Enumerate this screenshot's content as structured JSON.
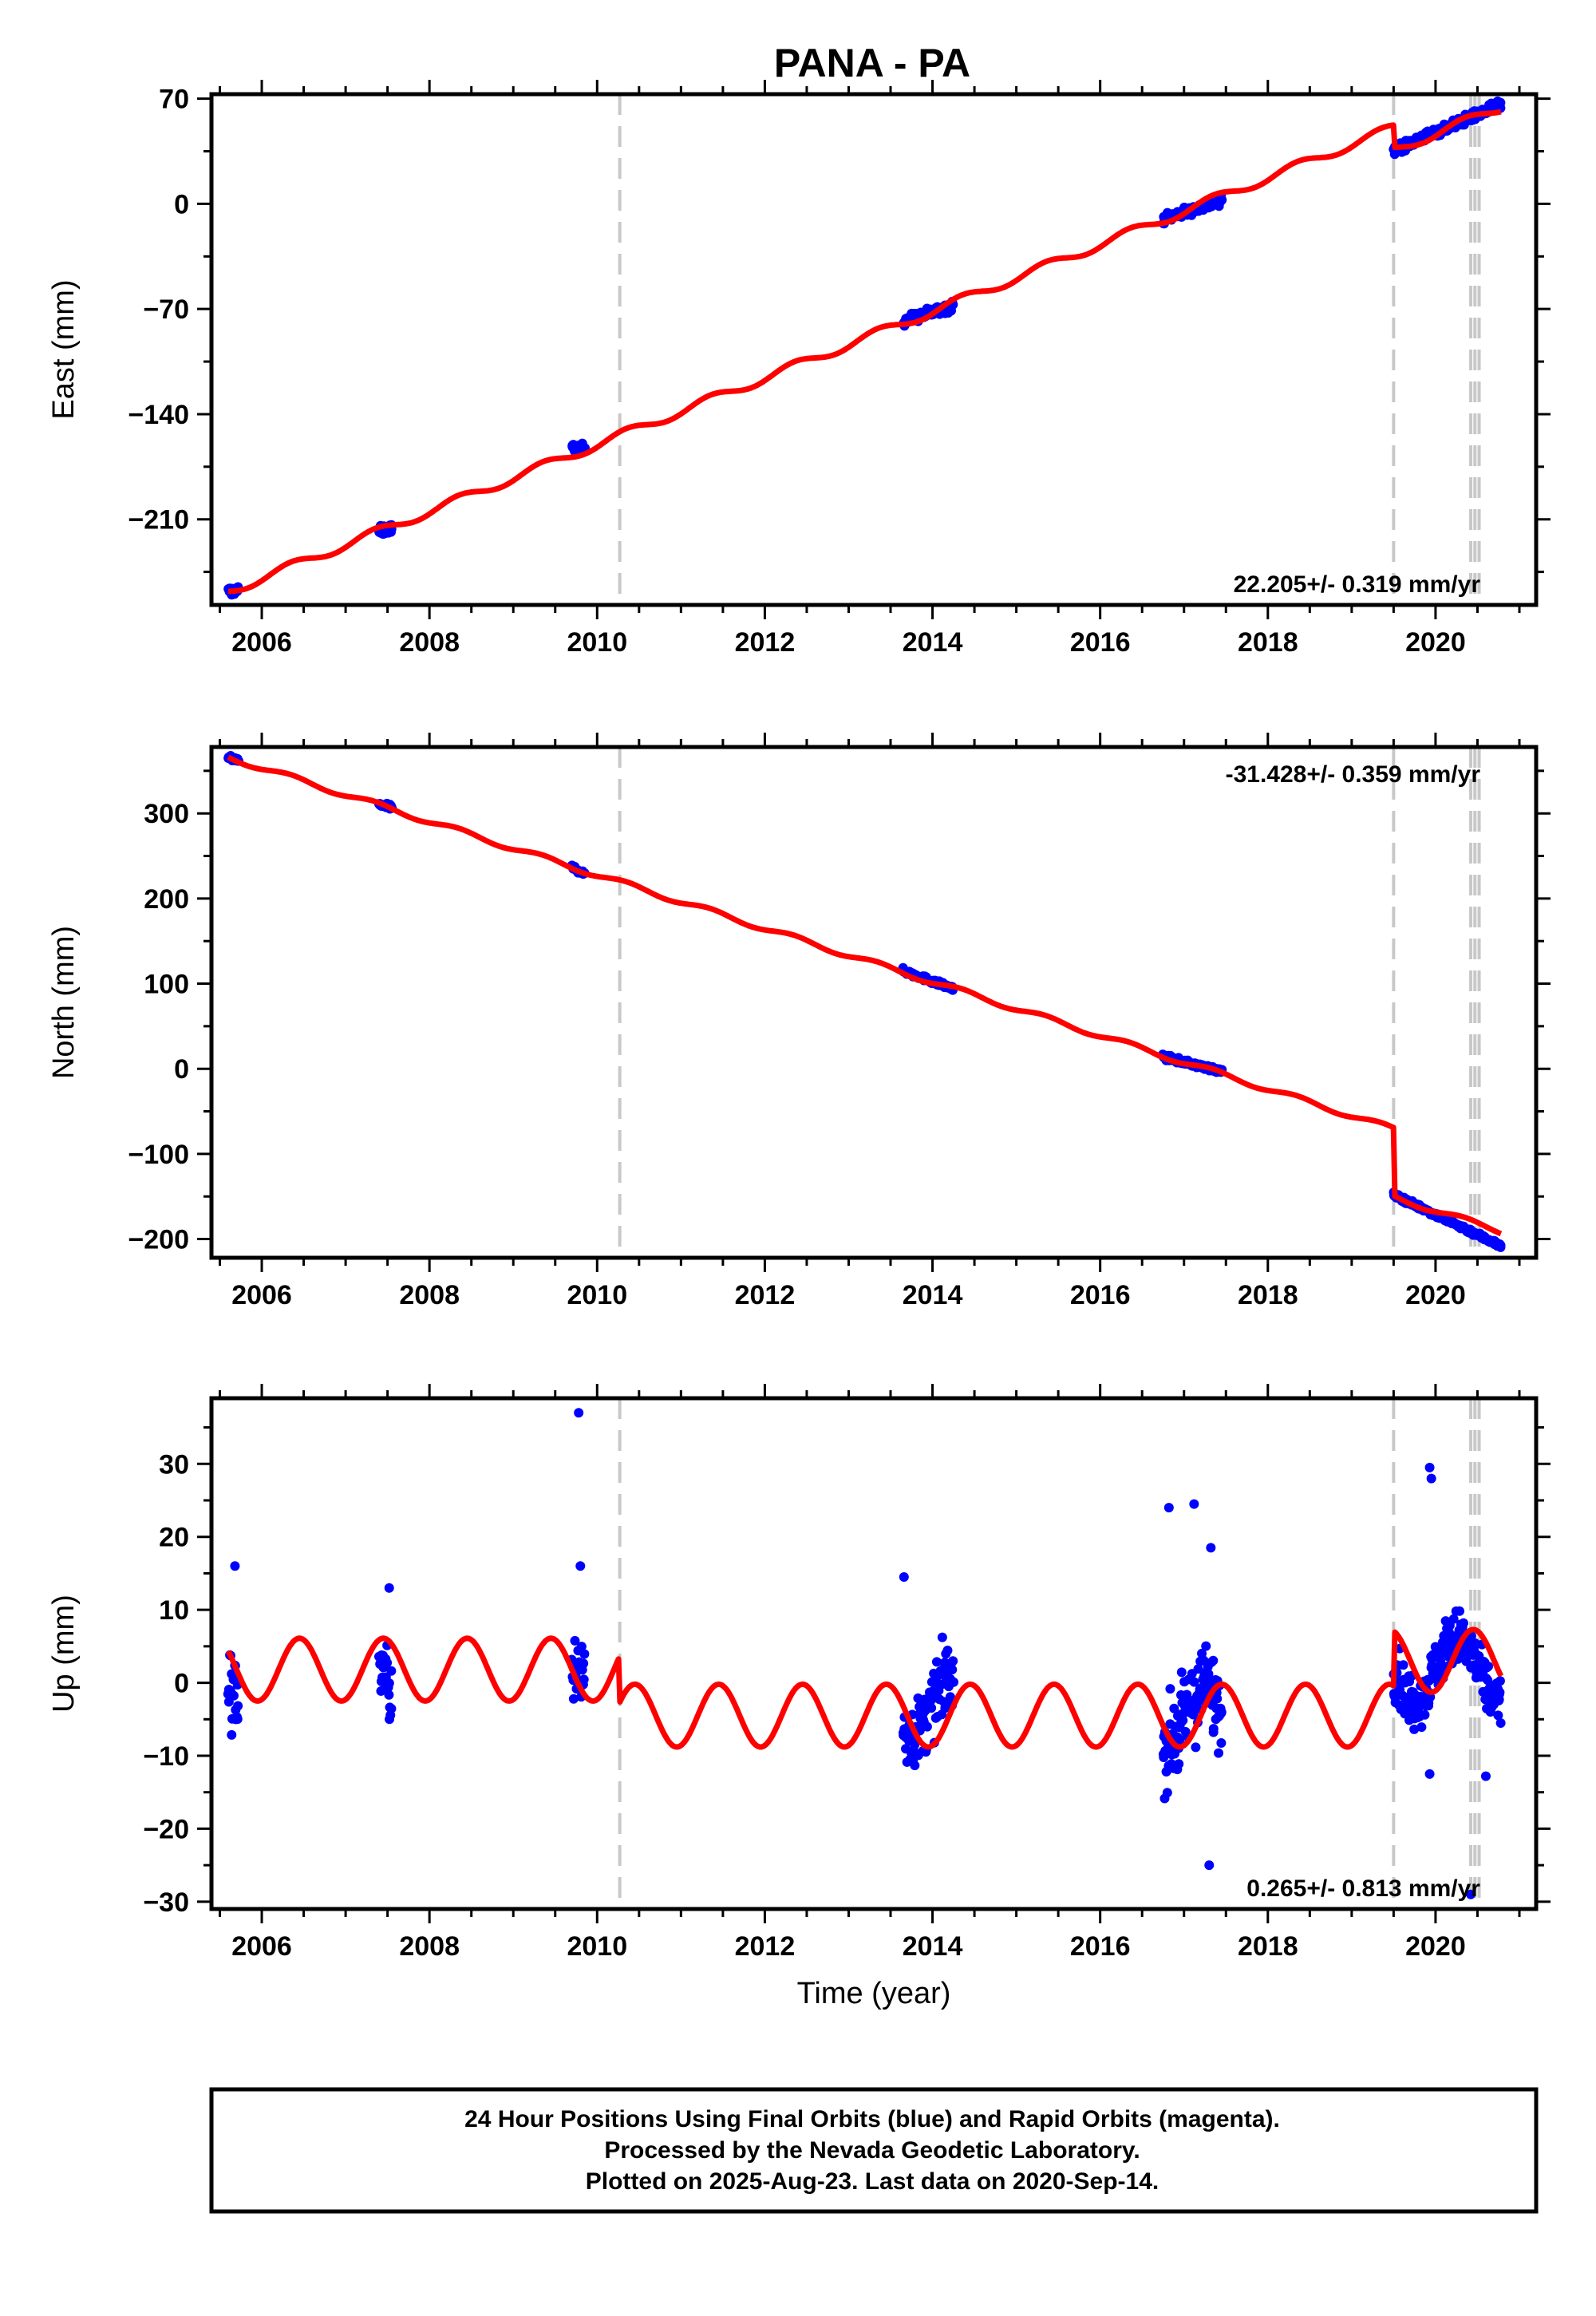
{
  "title": "PANA - PA",
  "footer": {
    "line1": "24 Hour Positions Using Final Orbits (blue) and Rapid Orbits (magenta).",
    "line2": "Processed by the Nevada Geodetic Laboratory.",
    "line3": "Plotted on 2025-Aug-23. Last data on 2020-Sep-14."
  },
  "colors": {
    "data_points": "#0000ff",
    "model_fit": "#ff0000",
    "event_lines": "#c8c8c8",
    "frame": "#000000"
  },
  "chart_data": [
    {
      "type": "scatter",
      "panel": "east",
      "xlabel": "",
      "ylabel": "East (mm)",
      "xlim": [
        2005.4,
        2021.2
      ],
      "ylim": [
        -267,
        73
      ],
      "xticks": [
        2006,
        2008,
        2010,
        2012,
        2014,
        2016,
        2018,
        2020
      ],
      "yticks": [
        -210,
        -140,
        -70,
        0,
        70
      ],
      "rate_text": "22.205+/- 0.319 mm/yr",
      "rate_placement": "bottom-right",
      "event_lines_x": [
        2010.27,
        2019.5,
        2020.42,
        2020.47,
        2020.52
      ],
      "data_segments": [
        {
          "x_start": 2005.6,
          "x_end": 2005.72,
          "y_start": -258,
          "y_end": -257
        },
        {
          "x_start": 2007.4,
          "x_end": 2007.55,
          "y_start": -218,
          "y_end": -216
        },
        {
          "x_start": 2009.7,
          "x_end": 2009.85,
          "y_start": -163,
          "y_end": -163
        },
        {
          "x_start": 2013.65,
          "x_end": 2014.25,
          "y_start": -78,
          "y_end": -68
        },
        {
          "x_start": 2016.75,
          "x_end": 2017.45,
          "y_start": -10,
          "y_end": 2
        },
        {
          "x_start": 2019.5,
          "x_end": 2020.78,
          "y_start": 36,
          "y_end": 66
        }
      ],
      "model_line": {
        "x_start": 2005.6,
        "x_end": 2020.78,
        "y_at_start": -258,
        "trend_mm_per_yr": 22.205,
        "annual_amplitude": 3,
        "offset_at_2019_5": -15
      }
    },
    {
      "type": "scatter",
      "panel": "north",
      "xlabel": "",
      "ylabel": "North (mm)",
      "xlim": [
        2005.4,
        2021.2
      ],
      "ylim": [
        -222,
        378
      ],
      "xticks": [
        2006,
        2008,
        2010,
        2012,
        2014,
        2016,
        2018,
        2020
      ],
      "yticks": [
        -200,
        -100,
        0,
        100,
        200,
        300
      ],
      "rate_text": "-31.428+/- 0.359 mm/yr",
      "rate_placement": "top-right",
      "event_lines_x": [
        2010.27,
        2019.5,
        2020.42,
        2020.47,
        2020.52
      ],
      "data_segments": [
        {
          "x_start": 2005.6,
          "x_end": 2005.72,
          "y_start": 365,
          "y_end": 362
        },
        {
          "x_start": 2007.4,
          "x_end": 2007.55,
          "y_start": 310,
          "y_end": 307
        },
        {
          "x_start": 2009.7,
          "x_end": 2009.85,
          "y_start": 237,
          "y_end": 229
        },
        {
          "x_start": 2013.65,
          "x_end": 2014.25,
          "y_start": 115,
          "y_end": 94
        },
        {
          "x_start": 2016.75,
          "x_end": 2017.45,
          "y_start": 14,
          "y_end": -3
        },
        {
          "x_start": 2019.5,
          "x_end": 2020.78,
          "y_start": -148,
          "y_end": -208
        }
      ],
      "model_line": {
        "x_start": 2005.6,
        "x_end": 2020.78,
        "y_at_start": 366,
        "trend_mm_per_yr": -31.428,
        "annual_amplitude": 3,
        "offset_at_2019_5": -80
      }
    },
    {
      "type": "scatter",
      "panel": "up",
      "xlabel": "Time (year)",
      "ylabel": "Up (mm)",
      "xlim": [
        2005.4,
        2021.2
      ],
      "ylim": [
        -31,
        39
      ],
      "xticks": [
        2006,
        2008,
        2010,
        2012,
        2014,
        2016,
        2018,
        2020
      ],
      "yticks": [
        -30,
        -20,
        -10,
        0,
        10,
        20,
        30
      ],
      "rate_text": "0.265+/- 0.813 mm/yr",
      "rate_placement": "bottom-right",
      "event_lines_x": [
        2010.27,
        2019.5,
        2020.42,
        2020.47,
        2020.52
      ],
      "data_segments": [
        {
          "x_start": 2005.6,
          "x_end": 2005.72,
          "center": 2,
          "spread": 9
        },
        {
          "x_start": 2007.4,
          "x_end": 2007.55,
          "center": 0,
          "spread": 7
        },
        {
          "x_start": 2009.7,
          "x_end": 2009.85,
          "center": 5,
          "spread": 9
        },
        {
          "x_start": 2013.65,
          "x_end": 2014.25,
          "center": -3,
          "spread": 7
        },
        {
          "x_start": 2016.75,
          "x_end": 2017.45,
          "center": -5,
          "spread": 9
        },
        {
          "x_start": 2019.5,
          "x_end": 2020.78,
          "center": 2,
          "spread": 6
        }
      ],
      "outliers": [
        {
          "x": 2009.78,
          "y": 37
        },
        {
          "x": 2019.93,
          "y": 29.5
        },
        {
          "x": 2019.95,
          "y": 28
        },
        {
          "x": 2016.82,
          "y": 24
        },
        {
          "x": 2017.12,
          "y": 24.5
        },
        {
          "x": 2017.32,
          "y": 18.5
        },
        {
          "x": 2013.66,
          "y": 14.5
        },
        {
          "x": 2005.68,
          "y": 16
        },
        {
          "x": 2007.52,
          "y": 13
        },
        {
          "x": 2009.8,
          "y": 16
        },
        {
          "x": 2017.3,
          "y": -25
        },
        {
          "x": 2020.42,
          "y": -29
        },
        {
          "x": 2019.93,
          "y": -12.5
        },
        {
          "x": 2020.6,
          "y": -12.8
        }
      ],
      "model_line": {
        "x_start": 2005.6,
        "x_end": 2020.78,
        "annual_amplitude": 4.3,
        "segment_means": [
          [
            2005.6,
            2010.27,
            1.8
          ],
          [
            2010.27,
            2019.5,
            -4.5
          ],
          [
            2019.5,
            2020.78,
            3
          ]
        ]
      }
    }
  ]
}
